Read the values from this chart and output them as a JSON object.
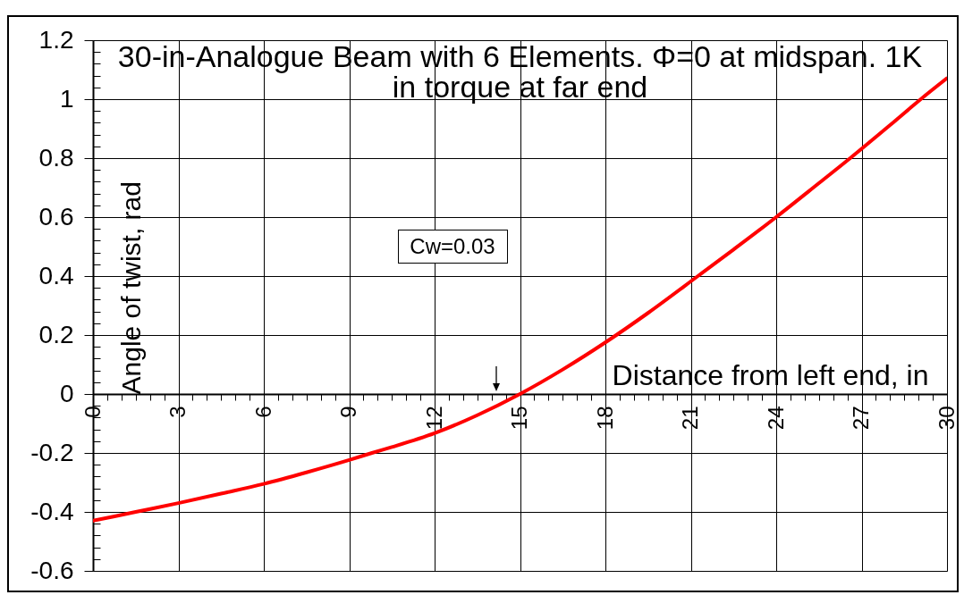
{
  "chart_data": {
    "type": "line",
    "title": "30-in-Analogue Beam with 6 Elements. Φ=0 at midspan. 1K in torque at far end",
    "xlabel": "Distance from left end, in",
    "ylabel": "Angle of twist, rad",
    "annotations": [
      "Cw=0.03"
    ],
    "x": [
      0,
      1.5,
      3,
      4.5,
      6,
      7.5,
      9,
      9.8,
      10.5,
      12,
      13.5,
      15,
      16.5,
      18,
      19.5,
      21.25,
      22.5,
      24,
      25.5,
      26.6,
      28,
      29.08,
      30
    ],
    "series": [
      {
        "color": "#ff0000",
        "values": [
          -0.43,
          -0.4,
          -0.37,
          -0.338,
          -0.305,
          -0.266,
          -0.224,
          -0.2,
          -0.18,
          -0.133,
          -0.072,
          0,
          0.083,
          0.175,
          0.275,
          0.4,
          0.49,
          0.6,
          0.715,
          0.8,
          0.912,
          1,
          1.071
        ]
      }
    ],
    "xlim": [
      0,
      30
    ],
    "ylim": [
      -0.6,
      1.2
    ],
    "xticks": [
      0,
      {
        "value": 0.5,
        "label": null
      },
      {
        "value": 1,
        "label": null
      },
      {
        "value": 1.5,
        "label": null
      },
      {
        "value": 2,
        "label": null
      },
      {
        "value": 2.5,
        "label": null
      },
      3,
      {
        "value": 3.5,
        "label": null
      },
      {
        "value": 4,
        "label": null
      },
      {
        "value": 4.5,
        "label": null
      },
      {
        "value": 5,
        "label": null
      },
      {
        "value": 5.5,
        "label": null
      },
      6,
      {
        "value": 6.5,
        "label": null
      },
      {
        "value": 7,
        "label": null
      },
      {
        "value": 7.5,
        "label": null
      },
      {
        "value": 8,
        "label": null
      },
      {
        "value": 8.5,
        "label": null
      },
      9,
      {
        "value": 9.5,
        "label": null
      },
      {
        "value": 10,
        "label": null
      },
      {
        "value": 10.5,
        "label": null
      },
      {
        "value": 11,
        "label": null
      },
      {
        "value": 11.5,
        "label": null
      },
      12,
      {
        "value": 12.5,
        "label": null
      },
      {
        "value": 13,
        "label": null
      },
      {
        "value": 13.5,
        "label": null
      },
      {
        "value": 14,
        "label": null
      },
      {
        "value": 14.5,
        "label": null
      },
      15,
      {
        "value": 15.5,
        "label": null
      },
      {
        "value": 16,
        "label": null
      },
      {
        "value": 16.5,
        "label": null
      },
      {
        "value": 17,
        "label": null
      },
      {
        "value": 17.5,
        "label": null
      },
      18,
      {
        "value": 18.5,
        "label": null
      },
      {
        "value": 19,
        "label": null
      },
      {
        "value": 19.5,
        "label": null
      },
      {
        "value": 20,
        "label": null
      },
      {
        "value": 20.5,
        "label": null
      },
      21,
      {
        "value": 21.5,
        "label": null
      },
      {
        "value": 22,
        "label": null
      },
      {
        "value": 22.5,
        "label": null
      },
      {
        "value": 23,
        "label": null
      },
      {
        "value": 23.5,
        "label": null
      },
      24,
      {
        "value": 24.5,
        "label": null
      },
      {
        "value": 25,
        "label": null
      },
      {
        "value": 25.5,
        "label": null
      },
      {
        "value": 26,
        "label": null
      },
      {
        "value": 26.5,
        "label": null
      },
      27,
      {
        "value": 27.5,
        "label": null
      },
      {
        "value": 28,
        "label": null
      },
      {
        "value": 28.5,
        "label": null
      },
      {
        "value": 29,
        "label": null
      },
      {
        "value": 29.5,
        "label": null
      },
      30
    ],
    "yticks": [
      -0.6,
      {
        "value": -0.56,
        "label": null
      },
      {
        "value": -0.52,
        "label": null
      },
      {
        "value": -0.48,
        "label": null
      },
      {
        "value": -0.44,
        "label": null
      },
      -0.4,
      {
        "value": -0.36,
        "label": null
      },
      {
        "value": -0.32,
        "label": null
      },
      {
        "value": -0.28,
        "label": null
      },
      {
        "value": -0.24,
        "label": null
      },
      -0.2,
      {
        "value": -0.16,
        "label": null
      },
      {
        "value": -0.12,
        "label": null
      },
      {
        "value": -0.08,
        "label": null
      },
      {
        "value": -0.04,
        "label": null
      },
      0,
      {
        "value": 0.04,
        "label": null
      },
      {
        "value": 0.08,
        "label": null
      },
      {
        "value": 0.12,
        "label": null
      },
      {
        "value": 0.16,
        "label": null
      },
      0.2,
      {
        "value": 0.24,
        "label": null
      },
      {
        "value": 0.28,
        "label": null
      },
      {
        "value": 0.32,
        "label": null
      },
      {
        "value": 0.36,
        "label": null
      },
      0.4,
      {
        "value": 0.44,
        "label": null
      },
      {
        "value": 0.48,
        "label": null
      },
      {
        "value": 0.52,
        "label": null
      },
      {
        "value": 0.56,
        "label": null
      },
      0.6,
      {
        "value": 0.64,
        "label": null
      },
      {
        "value": 0.68,
        "label": null
      },
      {
        "value": 0.72,
        "label": null
      },
      {
        "value": 0.76,
        "label": null
      },
      0.8,
      {
        "value": 0.84,
        "label": null
      },
      {
        "value": 0.88,
        "label": null
      },
      {
        "value": 0.92,
        "label": null
      },
      {
        "value": 0.96,
        "label": null
      },
      1,
      {
        "value": 1.04,
        "label": null
      },
      {
        "value": 1.08,
        "label": null
      },
      {
        "value": 1.12,
        "label": null
      },
      {
        "value": 1.16,
        "label": null
      },
      1.2
    ],
    "grid": true,
    "line_style": "solid"
  }
}
